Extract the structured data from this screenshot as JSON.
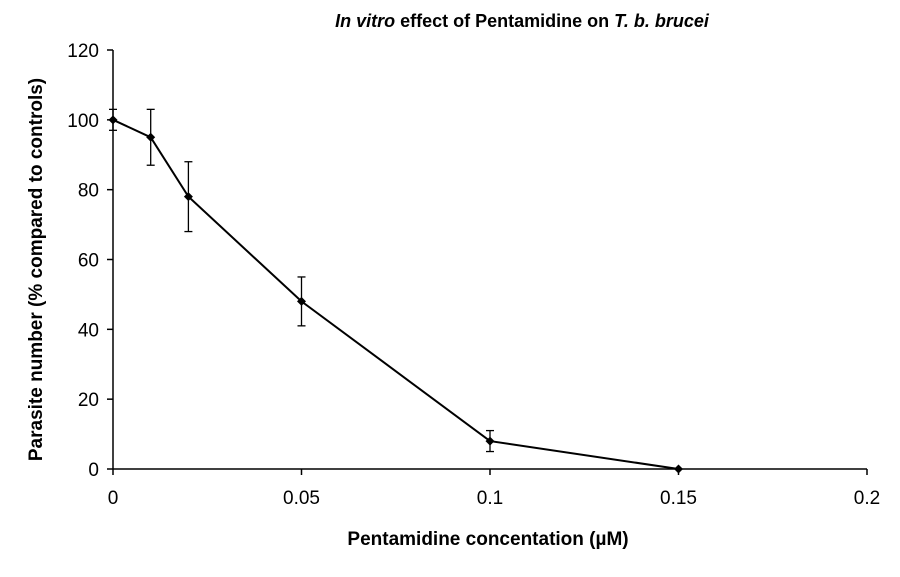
{
  "chart_data": {
    "type": "line",
    "title": {
      "italic_prefix": "In vitro",
      "middle": " effect of Pentamidine on ",
      "italic_suffix": "T. b. brucei"
    },
    "xlabel": "Pentamidine concentation (µM)",
    "ylabel": "Parasite number (% compared to controls)",
    "xlim": [
      0,
      0.2
    ],
    "ylim": [
      0,
      120
    ],
    "x_ticks": [
      0,
      0.05,
      0.1,
      0.15,
      0.2
    ],
    "x_tick_labels": [
      "0",
      "0.05",
      "0.1",
      "0.15",
      "0.2"
    ],
    "y_ticks": [
      0,
      20,
      40,
      60,
      80,
      100,
      120
    ],
    "y_tick_labels": [
      "0",
      "20",
      "40",
      "60",
      "80",
      "100",
      "120"
    ],
    "grid": false,
    "legend": "none",
    "series": [
      {
        "name": "Parasite number",
        "color": "#000000",
        "x": [
          0,
          0.01,
          0.02,
          0.05,
          0.1,
          0.15
        ],
        "y": [
          100,
          95,
          78,
          48,
          8,
          0
        ],
        "error": [
          3,
          8,
          10,
          7,
          3,
          0
        ]
      }
    ]
  }
}
